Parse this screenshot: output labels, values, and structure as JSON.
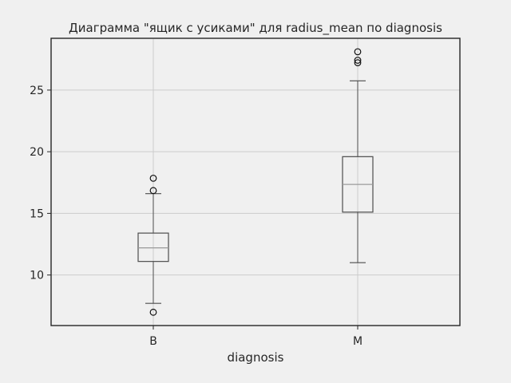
{
  "chart_data": {
    "type": "boxplot",
    "title": "Диаграмма \"ящик с усиками\" для radius_mean по diagnosis",
    "xlabel": "diagnosis",
    "ylabel": "",
    "categories": [
      "B",
      "M"
    ],
    "ylim": [
      5.9,
      29.2
    ],
    "yticks": [
      10,
      15,
      20,
      25
    ],
    "grid": true,
    "legend": "none",
    "colors": {
      "background": "#f0f0f0",
      "grid": "#cccccc",
      "box": "#4d4d4d",
      "median": "#9a9a9a",
      "axes": "#262626"
    },
    "boxes": [
      {
        "category": "B",
        "whisker_low": 7.7,
        "q1": 11.1,
        "median": 12.2,
        "q3": 13.4,
        "whisker_high": 16.6,
        "outliers": [
          6.98,
          16.85,
          17.85
        ]
      },
      {
        "category": "M",
        "whisker_low": 11.0,
        "q1": 15.1,
        "median": 17.35,
        "q3": 19.6,
        "whisker_high": 25.75,
        "outliers": [
          27.22,
          27.42,
          28.11
        ]
      }
    ]
  }
}
